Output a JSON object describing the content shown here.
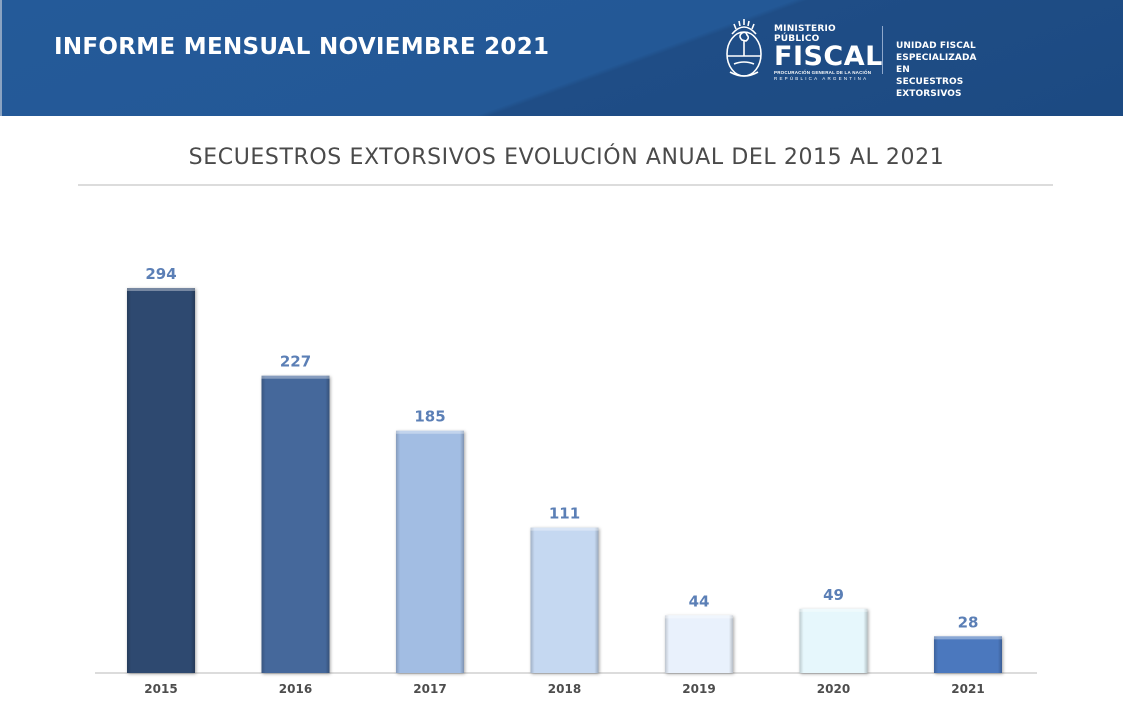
{
  "header": {
    "title": "INFORME MENSUAL NOVIEMBRE 2021",
    "logo": {
      "emblem_icon": "argentina-coat-of-arms-icon",
      "line1": "MINISTERIO PÚBLICO",
      "line2": "FISCAL",
      "line3": "PROCURACIÓN GENERAL DE LA NACIÓN",
      "line4": "REPÚBLICA ARGENTINA"
    },
    "unit_line1": "UNIDAD FISCAL ESPECIALIZADA",
    "unit_line2": "EN SECUESTROS EXTORSIVOS"
  },
  "colors": {
    "banner": "#235896",
    "title_text": "#4a4a4a",
    "data_label": "#5b7fb6"
  },
  "chart_data": {
    "type": "bar",
    "title": "SECUESTROS EXTORSIVOS EVOLUCIÓN ANUAL DEL 2015 AL 2021",
    "xlabel": "",
    "ylabel": "",
    "categories": [
      "2015",
      "2016",
      "2017",
      "2018",
      "2019",
      "2020",
      "2021"
    ],
    "values": [
      294,
      227,
      185,
      111,
      44,
      49,
      28
    ],
    "bar_colors": [
      "#2e4a70",
      "#44689b",
      "#a2bde3",
      "#c5d8f1",
      "#e9f1fc",
      "#e6f7fc",
      "#4b78be"
    ],
    "ylim": [
      0,
      300
    ],
    "grid": false,
    "legend": "none",
    "data_labels": true
  }
}
